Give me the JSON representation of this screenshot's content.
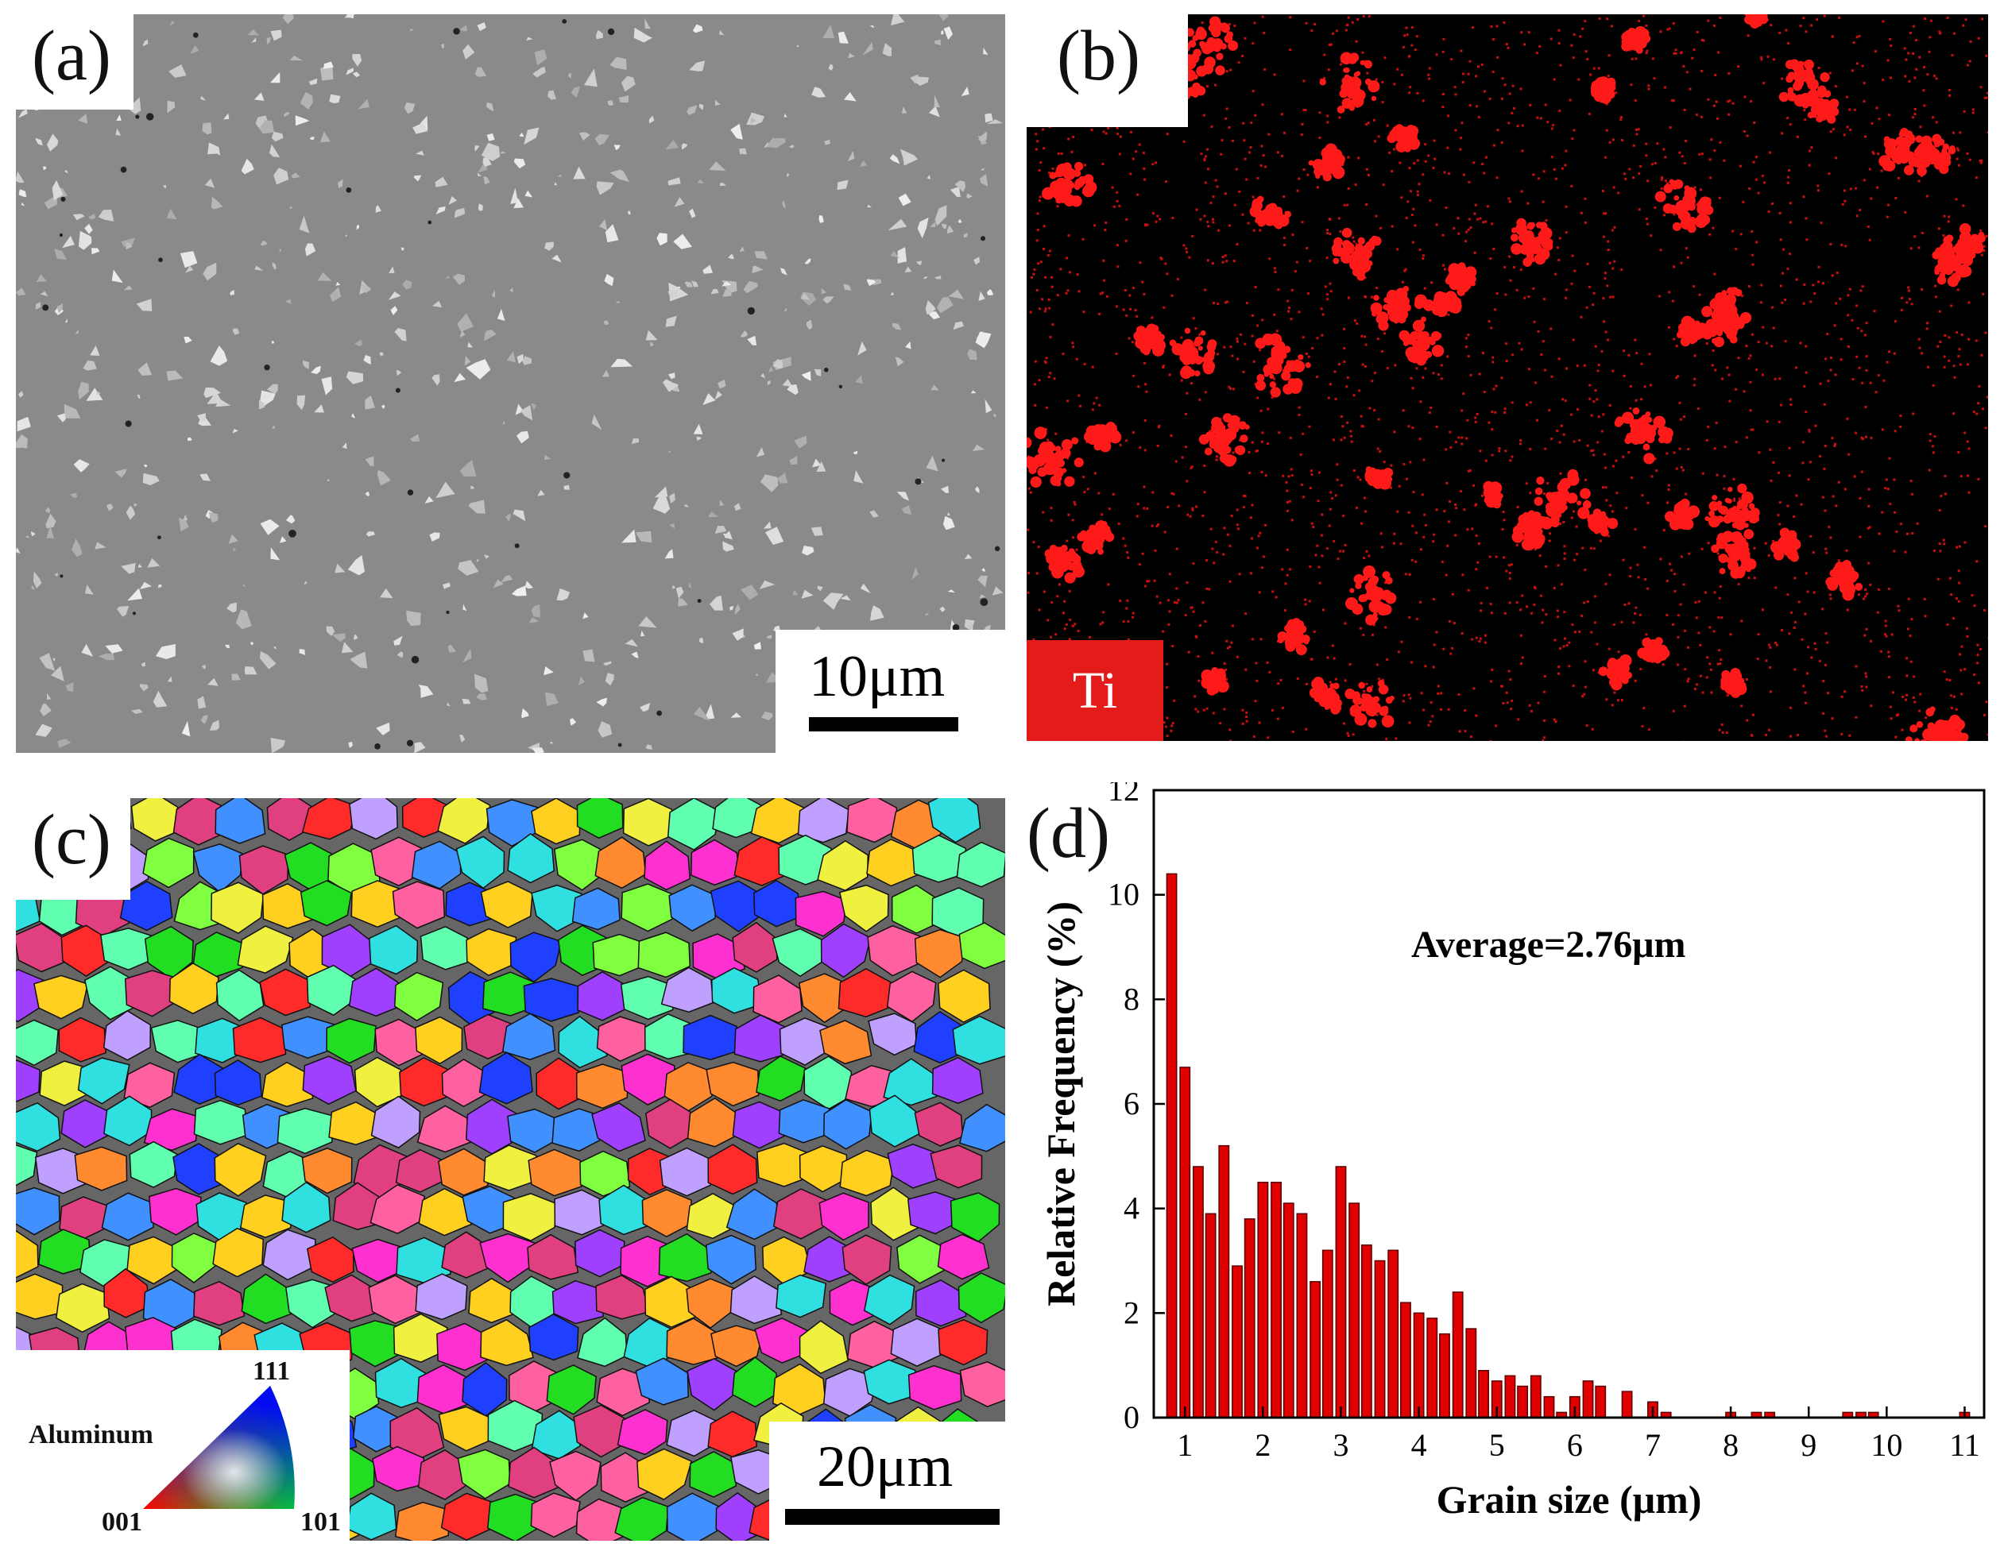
{
  "panels": {
    "a": {
      "label": "(a)",
      "scale_bar": "10μm"
    },
    "b": {
      "label": "(b)",
      "element": "Ti",
      "element_color": "#ff1a1a"
    },
    "c": {
      "label": "(c)",
      "scale_bar": "20μm",
      "legend": {
        "material": "Aluminum",
        "vertex_001": "001",
        "vertex_101": "101",
        "vertex_111": "111"
      }
    },
    "d": {
      "label": "(d)",
      "annotation": "Average=2.76μm"
    }
  },
  "chart_data": {
    "type": "bar",
    "title": "",
    "xlabel": "Grain size (μm)",
    "ylabel": "Relative Frequency (%)",
    "xlim": [
      0.6,
      11.25
    ],
    "ylim": [
      0,
      12
    ],
    "xticks": [
      1,
      2,
      3,
      4,
      5,
      6,
      7,
      8,
      9,
      10,
      11
    ],
    "yticks": [
      0,
      2,
      4,
      6,
      8,
      10,
      12
    ],
    "bar_color": "#e00000",
    "bin_width": 0.1667,
    "x": [
      0.83,
      1.0,
      1.17,
      1.33,
      1.5,
      1.67,
      1.83,
      2.0,
      2.17,
      2.33,
      2.5,
      2.67,
      2.83,
      3.0,
      3.17,
      3.33,
      3.5,
      3.67,
      3.83,
      4.0,
      4.17,
      4.33,
      4.5,
      4.67,
      4.83,
      5.0,
      5.17,
      5.33,
      5.5,
      5.67,
      5.83,
      6.0,
      6.17,
      6.33,
      6.5,
      6.67,
      6.83,
      7.0,
      7.17,
      7.33,
      7.5,
      7.67,
      7.83,
      8.0,
      8.17,
      8.33,
      8.5,
      8.67,
      8.83,
      9.0,
      9.17,
      9.33,
      9.5,
      9.67,
      9.83,
      10.0,
      10.17,
      10.33,
      10.5,
      10.67,
      10.83,
      11.0,
      11.17
    ],
    "values": [
      10.4,
      6.7,
      4.8,
      3.9,
      5.2,
      2.9,
      3.8,
      4.5,
      4.5,
      4.1,
      3.9,
      2.6,
      3.2,
      4.8,
      4.1,
      3.3,
      3.0,
      3.2,
      2.2,
      2.0,
      1.9,
      1.6,
      2.4,
      1.7,
      0.9,
      0.7,
      0.8,
      0.6,
      0.8,
      0.4,
      0.1,
      0.4,
      0.7,
      0.6,
      0.0,
      0.5,
      0.0,
      0.3,
      0.1,
      0.0,
      0.0,
      0.0,
      0.0,
      0.1,
      0.0,
      0.1,
      0.1,
      0.0,
      0.0,
      0.0,
      0.0,
      0.0,
      0.1,
      0.1,
      0.1,
      0.0,
      0.0,
      0.0,
      0.0,
      0.0,
      0.0,
      0.1,
      0.0
    ]
  }
}
